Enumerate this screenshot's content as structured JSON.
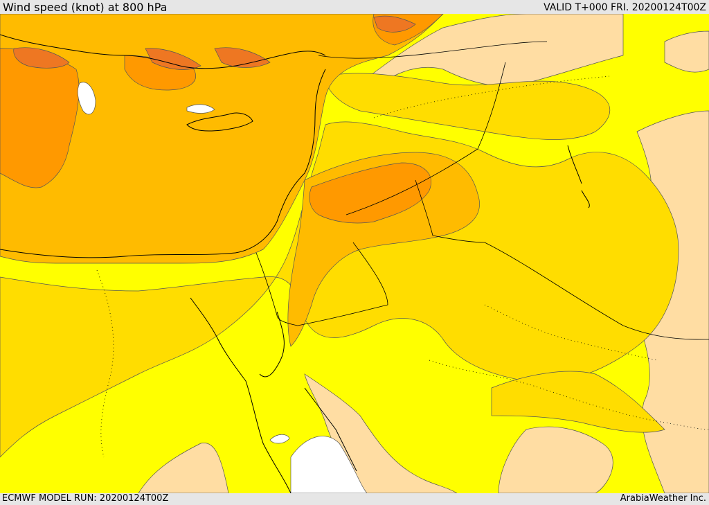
{
  "header": {
    "title": "Wind speed (knot) at 800 hPa",
    "valid": "VALID T+000 FRI. 20200124T00Z"
  },
  "footer": {
    "model_run": "ECMWF MODEL RUN: 20200124T00Z",
    "credit": "ArabiaWeather Inc."
  },
  "palette": {
    "below_5": "#ffffff",
    "5_10": "#ffdda3",
    "10_15": "#ffff00",
    "15_20": "#ffdd00",
    "20_25": "#ffbb00",
    "25_30": "#ff9900",
    "30_plus": "#ee7722",
    "coastline": "#000000",
    "contour_line": "#4d4d4d"
  }
}
